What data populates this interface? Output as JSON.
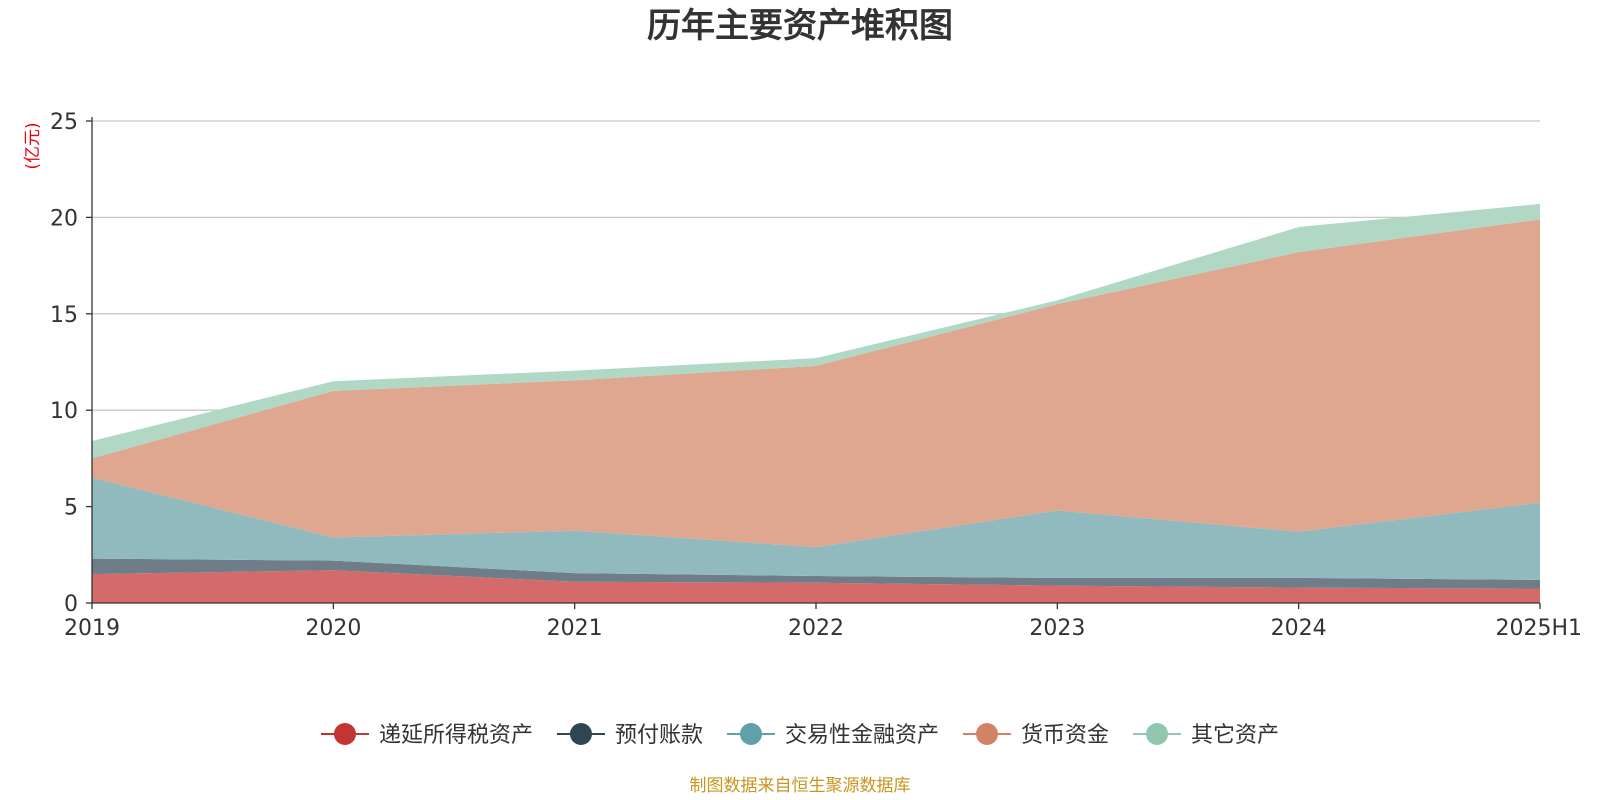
{
  "chart_data": {
    "type": "area",
    "stacked": true,
    "title": "历年主要资产堆积图",
    "ylabel": "(亿元)",
    "xlabel": "",
    "categories": [
      "2019",
      "2020",
      "2021",
      "2022",
      "2023",
      "2024",
      "2025H1"
    ],
    "ylim": [
      0,
      25
    ],
    "yticks": [
      0,
      5,
      10,
      15,
      20,
      25
    ],
    "grid": true,
    "legend_position": "bottom",
    "series": [
      {
        "name": "递延所得税资产",
        "color": "#c23531",
        "fill": "#d46b6a",
        "values": [
          1.5,
          1.7,
          1.1,
          1.05,
          0.9,
          0.8,
          0.75
        ]
      },
      {
        "name": "预付账款",
        "color": "#2f4554",
        "fill": "#6e7d87",
        "values": [
          0.8,
          0.5,
          0.45,
          0.35,
          0.4,
          0.5,
          0.45
        ]
      },
      {
        "name": "交易性金融资产",
        "color": "#61a0a8",
        "fill": "#91babf",
        "values": [
          4.2,
          1.2,
          2.2,
          1.5,
          3.5,
          2.4,
          4.0
        ]
      },
      {
        "name": "货币资金",
        "color": "#d48265",
        "fill": "#dfa690",
        "values": [
          1.0,
          7.6,
          7.8,
          9.4,
          10.7,
          14.5,
          14.7
        ]
      },
      {
        "name": "其它资产",
        "color": "#91c7ae",
        "fill": "#b0d8c5",
        "values": [
          0.9,
          0.5,
          0.5,
          0.4,
          0.2,
          1.3,
          0.8
        ]
      }
    ]
  },
  "source_note": "制图数据来自恒生聚源数据库"
}
